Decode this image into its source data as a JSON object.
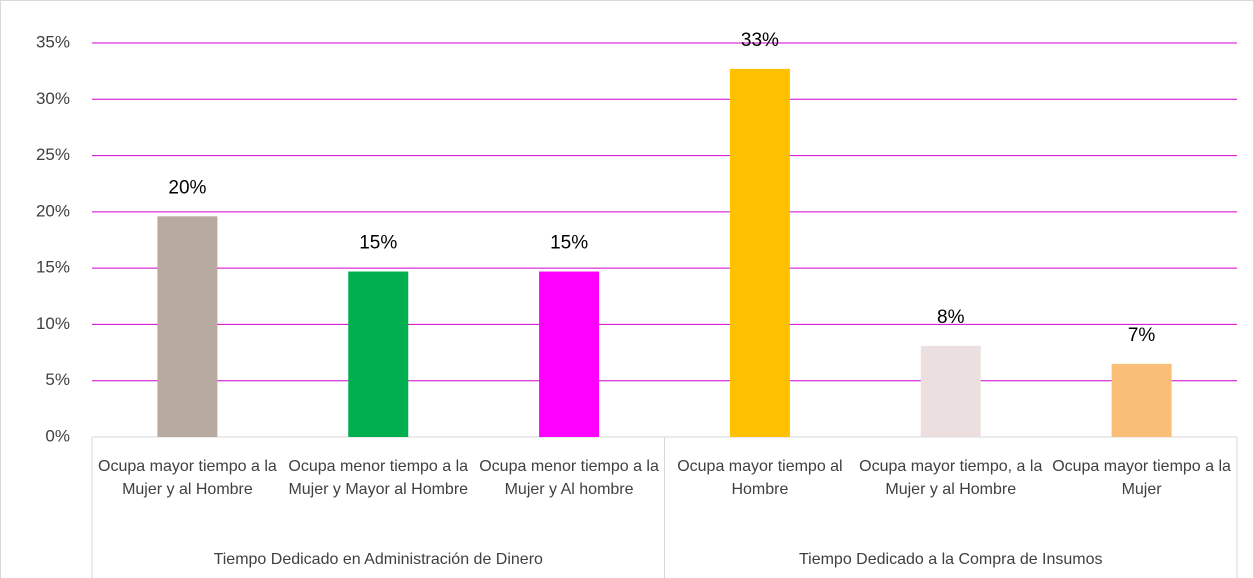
{
  "chart_data": {
    "type": "bar",
    "categories": [
      "Ocupa mayor tiempo a la Mujer y al Hombre",
      "Ocupa menor tiempo a la Mujer y Mayor al Hombre",
      "Ocupa menor tiempo a la Mujer y Al hombre",
      "Ocupa mayor tiempo al Hombre",
      "Ocupa mayor tiempo, a la Mujer y al Hombre",
      "Ocupa mayor tiempo a la Mujer"
    ],
    "groups": [
      {
        "name": "Tiempo Dedicado en Administración de Dinero",
        "size": 3
      },
      {
        "name": "Tiempo Dedicado a la Compra de Insumos",
        "size": 3
      }
    ],
    "values": [
      19.6,
      14.7,
      14.7,
      32.7,
      8.1,
      6.5
    ],
    "value_labels": [
      "20%",
      "15%",
      "15%",
      "33%",
      "8%",
      "7%"
    ],
    "colors": [
      "#b8aa9e",
      "#00b050",
      "#ff00ff",
      "#ffc000",
      "#ebe0df",
      "#f9bf78"
    ],
    "ylim": [
      0,
      35
    ],
    "yticks": [
      {
        "value": 0,
        "label": "0%"
      },
      {
        "value": 5,
        "label": "5%"
      },
      {
        "value": 10,
        "label": "10%"
      },
      {
        "value": 15,
        "label": "15%"
      },
      {
        "value": 20,
        "label": "20%"
      },
      {
        "value": 25,
        "label": "25%"
      },
      {
        "value": 30,
        "label": "30%"
      },
      {
        "value": 35,
        "label": "35%"
      }
    ],
    "grid": true,
    "grid_color": "#d000d0"
  }
}
